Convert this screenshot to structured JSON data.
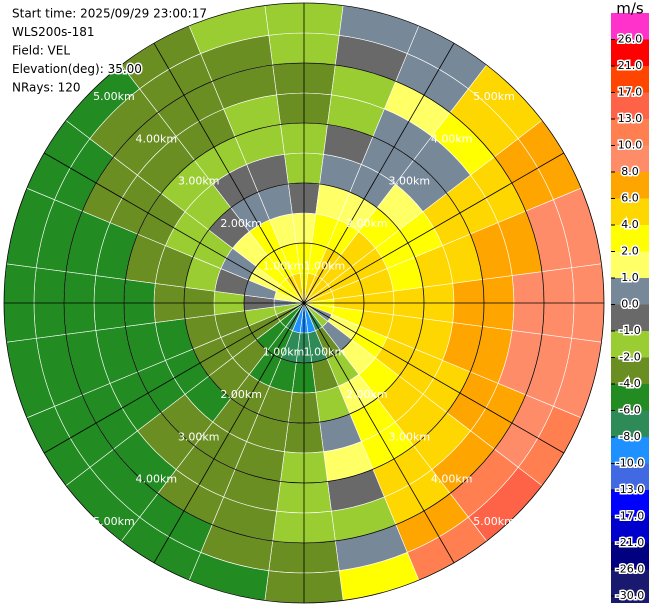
{
  "chart_data": {
    "type": "ppi",
    "info": [
      "Start time: 2025/09/29 23:00:17",
      "WLS200s-181",
      "Field: VEL",
      "Elevation(deg): 35.00",
      "NRays: 120"
    ],
    "units": "m/s",
    "azimuths": [
      0,
      15,
      30,
      45,
      60,
      75,
      90,
      105,
      120,
      135,
      150,
      165,
      180,
      195,
      210,
      225,
      240,
      255,
      270,
      285,
      300,
      315,
      330,
      345
    ],
    "gate_edges": [
      0,
      0.5,
      1,
      1.5,
      2,
      2.5,
      3,
      3.5,
      4,
      4.5,
      5
    ],
    "values": [
      [
        3,
        2,
        1,
        -1,
        -2,
        -2,
        -4,
        -4,
        -2,
        -2
      ],
      [
        4,
        3,
        2,
        1,
        0,
        -1,
        -2,
        -2,
        -1,
        0
      ],
      [
        4,
        4,
        2,
        1,
        0,
        0,
        0,
        1,
        0,
        0
      ],
      [
        4,
        4,
        4,
        2,
        1,
        0,
        0,
        2,
        4,
        4
      ],
      [
        4,
        4,
        4,
        2,
        2,
        4,
        4,
        4,
        6,
        6
      ],
      [
        4,
        4,
        4,
        2,
        4,
        4,
        6,
        6,
        8,
        8
      ],
      [
        2,
        4,
        4,
        4,
        4,
        6,
        6,
        8,
        8,
        8
      ],
      [
        2,
        2,
        4,
        4,
        4,
        6,
        6,
        8,
        8,
        8
      ],
      [
        0,
        1,
        2,
        4,
        4,
        4,
        6,
        6,
        8,
        10
      ],
      [
        -2,
        0,
        1,
        2,
        4,
        4,
        4,
        6,
        10,
        13
      ],
      [
        -8,
        -4,
        -2,
        1,
        2,
        2,
        4,
        4,
        6,
        10
      ],
      [
        -10,
        -8,
        -4,
        -2,
        0,
        1,
        -1,
        -2,
        0,
        2
      ],
      [
        -10,
        -8,
        -6,
        -4,
        -4,
        -2,
        -2,
        -2,
        -4,
        -4
      ],
      [
        -10,
        -8,
        -6,
        -4,
        -4,
        -4,
        -4,
        -4,
        -4,
        -6
      ],
      [
        -8,
        -6,
        -6,
        -4,
        -4,
        -4,
        -4,
        -4,
        -6,
        -6
      ],
      [
        -6,
        -6,
        -4,
        -4,
        -6,
        -4,
        -4,
        -6,
        -6,
        -6
      ],
      [
        -4,
        -4,
        -4,
        -4,
        -6,
        -6,
        -6,
        -6,
        -6,
        -6
      ],
      [
        -2,
        -2,
        -4,
        -4,
        -6,
        -6,
        -6,
        -6,
        -6,
        -6
      ],
      [
        0,
        -1,
        -2,
        -4,
        -4,
        -6,
        -6,
        -6,
        -6,
        -6
      ],
      [
        1,
        0,
        -1,
        -2,
        -4,
        -4,
        -6,
        -6,
        -6,
        -6
      ],
      [
        2,
        1,
        0,
        -2,
        -2,
        -4,
        -4,
        -4,
        -6,
        -6
      ],
      [
        2,
        2,
        1,
        -1,
        -2,
        -2,
        -4,
        -4,
        -4,
        -6
      ],
      [
        4,
        2,
        2,
        0,
        -1,
        -2,
        -4,
        -4,
        -4,
        -4
      ],
      [
        4,
        2,
        1,
        0,
        -1,
        -2,
        -2,
        -4,
        -4,
        -2
      ]
    ],
    "rlim": [
      0,
      5
    ],
    "rticks": [
      {
        "value": 1,
        "label": "1.00km"
      },
      {
        "value": 2,
        "label": "2.00km"
      },
      {
        "value": 3,
        "label": "3.00km"
      },
      {
        "value": 4,
        "label": "4.00km"
      },
      {
        "value": 5,
        "label": "5.00km"
      }
    ],
    "colorbar": {
      "levels": [
        {
          "value": -30,
          "label": "-30.0"
        },
        {
          "value": -26,
          "label": "-26.0"
        },
        {
          "value": -21,
          "label": "-21.0"
        },
        {
          "value": -17,
          "label": "-17.0"
        },
        {
          "value": -13,
          "label": "-13.0"
        },
        {
          "value": -10,
          "label": "-10.0"
        },
        {
          "value": -8,
          "label": "-8.0"
        },
        {
          "value": -6,
          "label": "-6.0"
        },
        {
          "value": -4,
          "label": "-4.0"
        },
        {
          "value": -2,
          "label": "-2.0"
        },
        {
          "value": -1,
          "label": "-1.0"
        },
        {
          "value": 0,
          "label": "0.0"
        },
        {
          "value": 1,
          "label": "1.0"
        },
        {
          "value": 2,
          "label": "2.0"
        },
        {
          "value": 4,
          "label": "4.0"
        },
        {
          "value": 6,
          "label": "6.0"
        },
        {
          "value": 8,
          "label": "8.0"
        },
        {
          "value": 10,
          "label": "10.0"
        },
        {
          "value": 13,
          "label": "13.0"
        },
        {
          "value": 17,
          "label": "17.0"
        },
        {
          "value": 21,
          "label": "21.0"
        },
        {
          "value": 26,
          "label": "26.0"
        }
      ],
      "colors": [
        "#191970",
        "#000080",
        "#0000cd",
        "#0000ff",
        "#4169e1",
        "#1e90ff",
        "#2e8b57",
        "#228b22",
        "#6b8e23",
        "#9acd32",
        "#696969",
        "#778899",
        "#ffff66",
        "#ffff00",
        "#ffd700",
        "#ffa500",
        "#ff8c69",
        "#ff7f50",
        "#ff6347",
        "#ff4500",
        "#ff0000",
        "#ff33cc"
      ]
    }
  }
}
